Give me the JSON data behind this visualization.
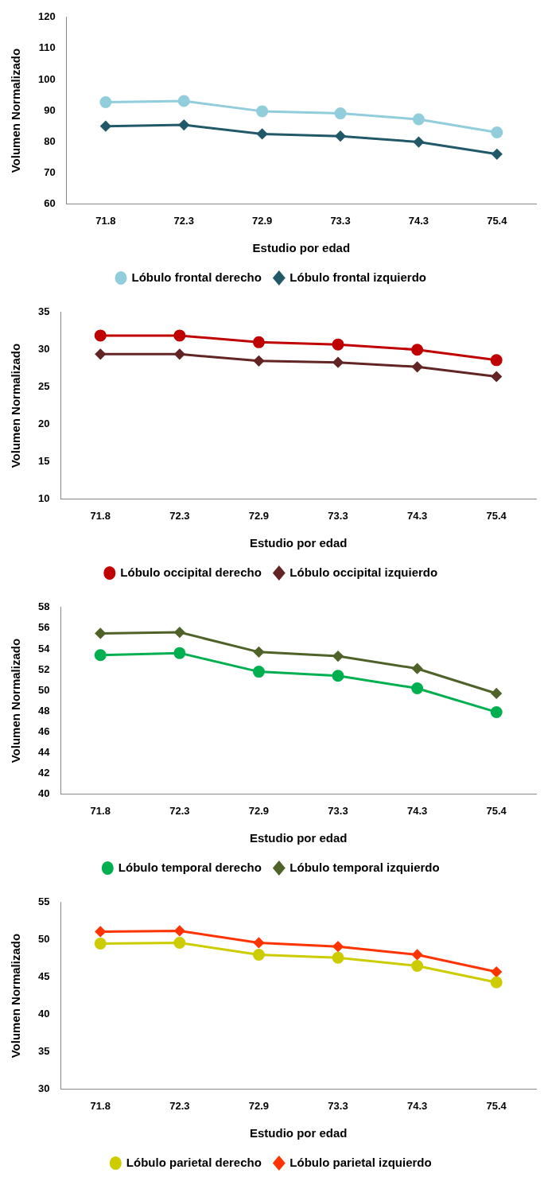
{
  "chart_data": [
    {
      "type": "line",
      "xlabel": "Estudio por edad",
      "ylabel": "Volumen Normalizado",
      "categories": [
        "71.8",
        "72.3",
        "72.9",
        "73.3",
        "74.3",
        "75.4"
      ],
      "ylim": [
        60,
        120
      ],
      "yticks": [
        60,
        70,
        80,
        90,
        100,
        110,
        120
      ],
      "grid": false,
      "legend": "bottom",
      "series": [
        {
          "name": "Lóbulo frontal derecho",
          "color": "#92cddc",
          "marker": "circle",
          "values": [
            92.7,
            93.1,
            89.8,
            89.1,
            87.2,
            83.0
          ]
        },
        {
          "name": "Lóbulo frontal izquierdo",
          "color": "#215968",
          "marker": "diamond",
          "values": [
            85.0,
            85.4,
            82.5,
            81.8,
            79.9,
            76.0
          ]
        }
      ]
    },
    {
      "type": "line",
      "xlabel": "Estudio por edad",
      "ylabel": "Volumen Normalizado",
      "categories": [
        "71.8",
        "72.3",
        "72.9",
        "73.3",
        "74.3",
        "75.4"
      ],
      "ylim": [
        10,
        35
      ],
      "yticks": [
        10,
        15,
        20,
        25,
        30,
        35
      ],
      "grid": false,
      "legend": "bottom",
      "series": [
        {
          "name": "Lóbulo occipital derecho",
          "color": "#c00000",
          "marker": "circle",
          "values": [
            31.9,
            31.9,
            31.0,
            30.7,
            30.0,
            28.6
          ]
        },
        {
          "name": "Lóbulo occipital izquierdo",
          "color": "#632523",
          "marker": "diamond",
          "values": [
            29.4,
            29.4,
            28.5,
            28.3,
            27.7,
            26.4
          ]
        }
      ]
    },
    {
      "type": "line",
      "xlabel": "Estudio por edad",
      "ylabel": "Volumen Normalizado",
      "categories": [
        "71.8",
        "72.3",
        "72.9",
        "73.3",
        "74.3",
        "75.4"
      ],
      "ylim": [
        40,
        58
      ],
      "yticks": [
        40,
        42,
        44,
        46,
        48,
        50,
        52,
        54,
        56,
        58
      ],
      "grid": false,
      "legend": "bottom",
      "series": [
        {
          "name": "Lóbulo temporal derecho",
          "color": "#00b050",
          "marker": "circle",
          "values": [
            53.4,
            53.6,
            51.8,
            51.4,
            50.2,
            47.9
          ]
        },
        {
          "name": "Lóbulo temporal izquierdo",
          "color": "#4f6228",
          "marker": "diamond",
          "values": [
            55.5,
            55.6,
            53.7,
            53.3,
            52.1,
            49.7
          ]
        }
      ]
    },
    {
      "type": "line",
      "xlabel": "Estudio por edad",
      "ylabel": "Volumen Normalizado",
      "categories": [
        "71.8",
        "72.3",
        "72.9",
        "73.3",
        "74.3",
        "75.4"
      ],
      "ylim": [
        30,
        55
      ],
      "yticks": [
        30,
        35,
        40,
        45,
        50,
        55
      ],
      "grid": false,
      "legend": "bottom",
      "series": [
        {
          "name": "Lóbulo parietal derecho",
          "color": "#cccc00",
          "marker": "circle",
          "values": [
            49.5,
            49.6,
            48.0,
            47.6,
            46.5,
            44.3
          ]
        },
        {
          "name": "Lóbulo parietal izquierdo",
          "color": "#ff3300",
          "marker": "diamond",
          "values": [
            51.1,
            51.2,
            49.6,
            49.1,
            48.0,
            45.7
          ]
        }
      ]
    }
  ]
}
